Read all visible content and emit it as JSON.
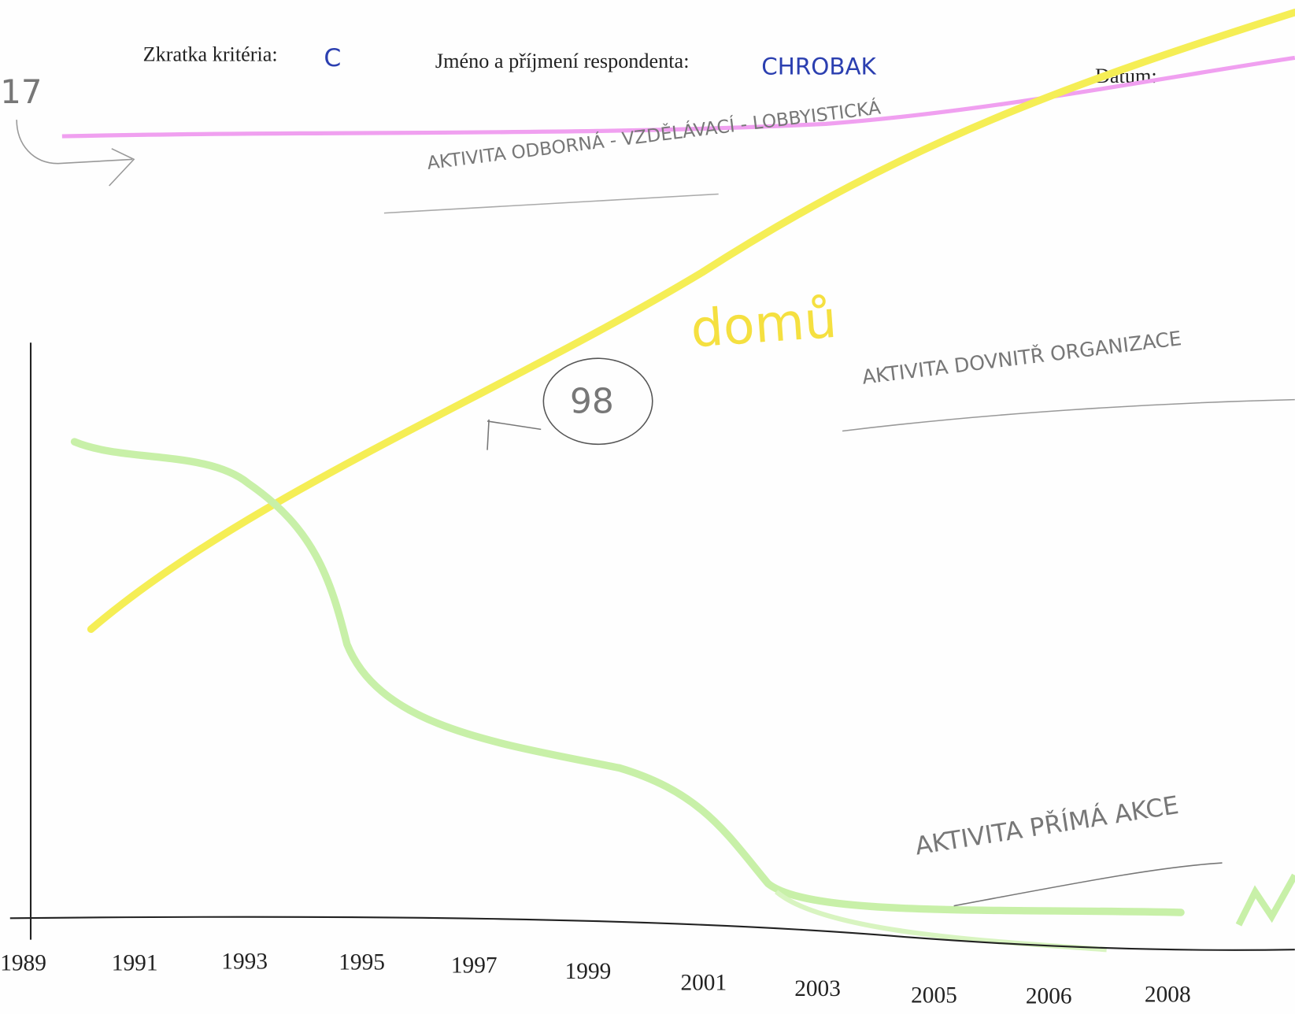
{
  "header": {
    "criterion_label": "Zkratka kritéria:",
    "criterion_value": "C",
    "respondent_label": "Jméno a příjmení respondenta:",
    "respondent_value": "CHROBAK",
    "date_label": "Datum:"
  },
  "annotations": {
    "top_number": "17",
    "top_line": "AKTIVITA ODBORNÁ - VZDĚLÁVACÍ - LOBBYISTICKÁ",
    "yellow_note": "domů",
    "circled_number": "98",
    "middle_line": "AKTIVITA DOVNITŘ ORGANIZACE",
    "bottom_line": "AKTIVITA PŘÍMÁ AKCE"
  },
  "axis": {
    "years": [
      "1989",
      "1991",
      "1993",
      "1995",
      "1997",
      "1999",
      "2001",
      "2003",
      "2005",
      "2006",
      "2008"
    ]
  }
}
